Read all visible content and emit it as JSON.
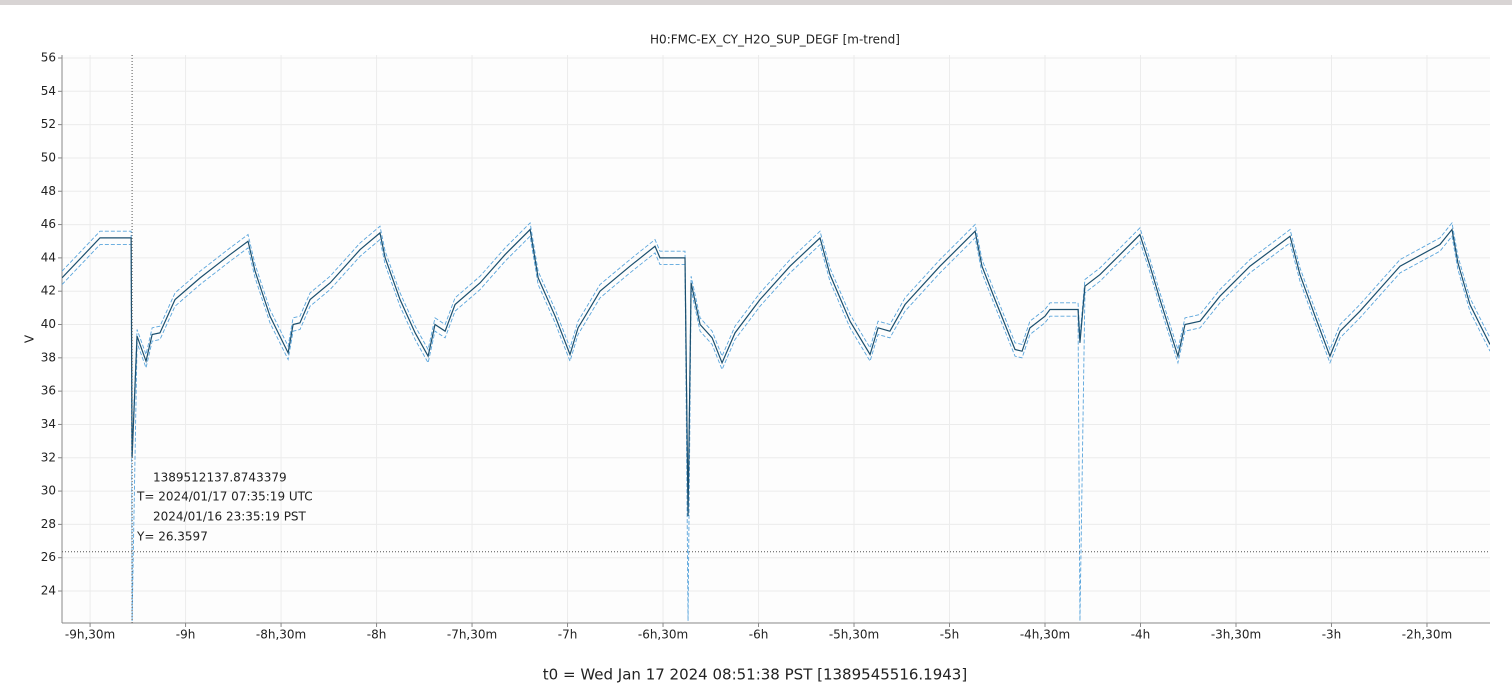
{
  "chart_data": {
    "type": "line",
    "title": "H0:FMC-EX_CY_H2O_SUP_DEGF [m-trend]",
    "ylabel": "V",
    "xlabel": "t0 = Wed Jan 17 2024 08:51:38 PST [1389545516.1943]",
    "xlim": [
      -9.647,
      -2.17
    ],
    "ylim": [
      22.08,
      56.18
    ],
    "xticks": [
      {
        "value": -9.5,
        "label": "-9h,30m"
      },
      {
        "value": -9,
        "label": "-9h"
      },
      {
        "value": -8.5,
        "label": "-8h,30m"
      },
      {
        "value": -8,
        "label": "-8h"
      },
      {
        "value": -7.5,
        "label": "-7h,30m"
      },
      {
        "value": -7,
        "label": "-7h"
      },
      {
        "value": -6.5,
        "label": "-6h,30m"
      },
      {
        "value": -6,
        "label": "-6h"
      },
      {
        "value": -5.5,
        "label": "-5h,30m"
      },
      {
        "value": -5,
        "label": "-5h"
      },
      {
        "value": -4.5,
        "label": "-4h,30m"
      },
      {
        "value": -4,
        "label": "-4h"
      },
      {
        "value": -3.5,
        "label": "-3h,30m"
      },
      {
        "value": -3,
        "label": "-3h"
      },
      {
        "value": -2.5,
        "label": "-2h,30m"
      }
    ],
    "yticks": [
      24,
      26,
      28,
      30,
      32,
      34,
      36,
      38,
      40,
      42,
      44,
      46,
      48,
      50,
      52,
      54,
      56
    ],
    "grid": true,
    "x": [
      -9.647,
      -9.448,
      -9.285,
      -9.28,
      -9.254,
      -9.207,
      -9.175,
      -9.134,
      -9.055,
      -8.924,
      -8.767,
      -8.673,
      -8.636,
      -8.558,
      -8.463,
      -8.437,
      -8.401,
      -8.348,
      -8.243,
      -8.086,
      -7.982,
      -7.955,
      -7.877,
      -7.798,
      -7.73,
      -7.694,
      -7.641,
      -7.589,
      -7.458,
      -7.327,
      -7.196,
      -7.154,
      -7.065,
      -6.987,
      -6.945,
      -6.908,
      -6.83,
      -6.673,
      -6.542,
      -6.516,
      -6.385,
      -6.369,
      -6.353,
      -6.306,
      -6.243,
      -6.191,
      -6.123,
      -5.992,
      -5.835,
      -5.678,
      -5.626,
      -5.521,
      -5.416,
      -5.374,
      -5.312,
      -5.233,
      -5.05,
      -4.866,
      -4.83,
      -4.762,
      -4.657,
      -4.62,
      -4.579,
      -4.5,
      -4.474,
      -4.327,
      -4.317,
      -4.291,
      -4.212,
      -4.107,
      -4.003,
      -3.95,
      -3.898,
      -3.804,
      -3.767,
      -3.688,
      -3.584,
      -3.427,
      -3.217,
      -3.165,
      -3.086,
      -3.008,
      -2.955,
      -2.851,
      -2.641,
      -2.432,
      -2.369,
      -2.338,
      -2.275,
      -2.223,
      -2.17
    ],
    "series": [
      {
        "color": "#5aa5dc",
        "style": "dashed",
        "values": [
          43.2,
          45.6,
          45.6,
          32.4,
          39.7,
          38.2,
          39.8,
          39.9,
          41.9,
          43.2,
          44.6,
          45.4,
          43.6,
          40.9,
          38.7,
          40.4,
          40.5,
          41.9,
          42.9,
          44.9,
          45.9,
          44.4,
          41.9,
          39.9,
          38.5,
          40.4,
          40,
          41.6,
          42.9,
          44.6,
          46.1,
          43.2,
          40.9,
          38.6,
          40.2,
          40.9,
          42.4,
          43.9,
          45.1,
          44.4,
          44.4,
          28.9,
          42.9,
          40.4,
          39.6,
          38.1,
          39.9,
          41.9,
          43.9,
          45.6,
          43.4,
          40.6,
          38.6,
          40.2,
          40,
          41.6,
          43.9,
          46,
          43.9,
          41.9,
          38.9,
          38.8,
          40.2,
          40.9,
          41.3,
          41.3,
          39.3,
          42.7,
          43.4,
          44.6,
          45.8,
          43.9,
          41.9,
          38.5,
          40.4,
          40.6,
          42.1,
          43.9,
          45.7,
          43.4,
          40.9,
          38.5,
          40,
          41.2,
          43.9,
          45.2,
          46.1,
          44.1,
          41.6,
          40.4,
          39.2
        ]
      },
      {
        "color": "#5aa5dc",
        "style": "dashed",
        "values": [
          42.4,
          44.8,
          44.8,
          22.2,
          38.9,
          37.4,
          39,
          39.1,
          41.1,
          42.4,
          43.8,
          44.6,
          42.8,
          40.1,
          37.9,
          39.6,
          39.7,
          41.1,
          42.1,
          44.1,
          45.1,
          43.6,
          41.1,
          39.1,
          37.7,
          39.6,
          39.2,
          40.8,
          42.1,
          43.8,
          45.3,
          42.4,
          40.1,
          37.8,
          39.4,
          40.1,
          41.6,
          43.1,
          44.3,
          43.6,
          43.6,
          22.2,
          42.1,
          39.6,
          38.8,
          37.3,
          39.1,
          41.1,
          43.1,
          44.8,
          42.6,
          39.8,
          37.8,
          39.4,
          39.2,
          40.8,
          43.1,
          45.2,
          43.1,
          41.1,
          38.1,
          38,
          39.4,
          40.1,
          40.5,
          40.5,
          22.2,
          41.9,
          42.6,
          43.8,
          45,
          43.1,
          41.1,
          37.7,
          39.6,
          39.8,
          41.3,
          43.1,
          44.9,
          42.6,
          40.1,
          37.7,
          39.2,
          40.4,
          43.1,
          44.4,
          45.3,
          43.3,
          40.8,
          39.6,
          38.4
        ]
      },
      {
        "color": "#1b4f6e",
        "style": "solid",
        "values": [
          42.8,
          45.2,
          45.2,
          32,
          39.3,
          37.8,
          39.4,
          39.5,
          41.5,
          42.8,
          44.2,
          45,
          43.2,
          40.5,
          38.3,
          40,
          40.1,
          41.5,
          42.5,
          44.5,
          45.5,
          44,
          41.5,
          39.5,
          38.1,
          40,
          39.6,
          41.2,
          42.5,
          44.2,
          45.7,
          42.8,
          40.5,
          38.2,
          39.8,
          40.5,
          42,
          43.5,
          44.7,
          44,
          44,
          28.5,
          42.5,
          40,
          39.2,
          37.7,
          39.5,
          41.5,
          43.5,
          45.2,
          43,
          40.2,
          38.2,
          39.8,
          39.6,
          41.2,
          43.5,
          45.6,
          43.5,
          41.5,
          38.5,
          38.4,
          39.8,
          40.5,
          40.9,
          40.9,
          38.9,
          42.3,
          43,
          44.2,
          45.4,
          43.5,
          41.5,
          38.1,
          40,
          40.2,
          41.7,
          43.5,
          45.3,
          43,
          40.5,
          38.1,
          39.6,
          40.8,
          43.5,
          44.8,
          45.7,
          43.7,
          41.2,
          40,
          38.8
        ]
      }
    ],
    "cursor": {
      "x": -9.28,
      "y": 26.3597,
      "labels": [
        "1389512137.8743379",
        "T= 2024/01/17 07:35:19 UTC",
        "2024/01/16 23:35:19 PST",
        "Y= 26.3597"
      ]
    }
  }
}
